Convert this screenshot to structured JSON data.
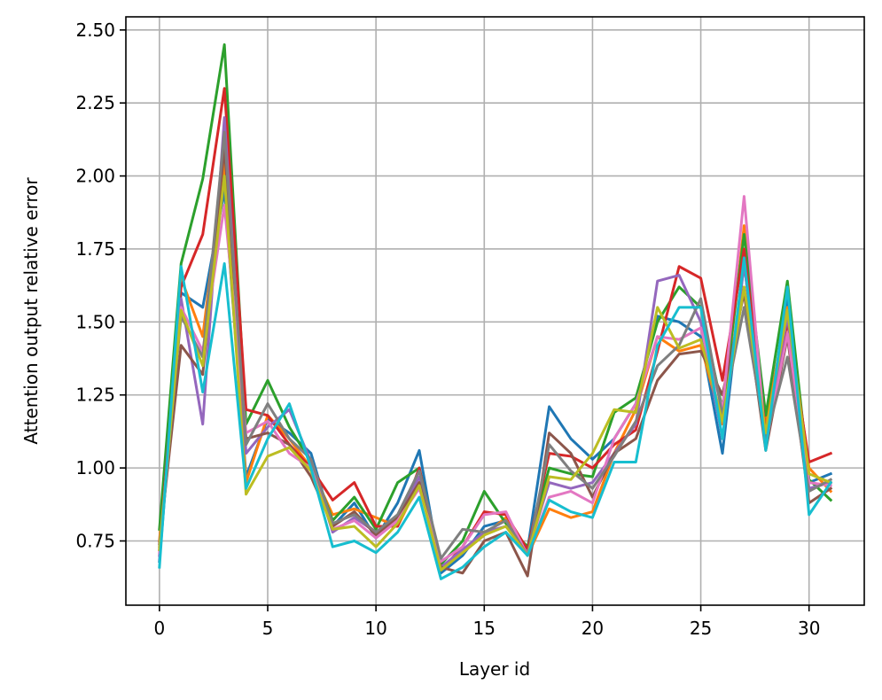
{
  "chart_data": {
    "type": "line",
    "title": "",
    "xlabel": "Layer id",
    "ylabel": "Attention output relative error",
    "xlim": [
      -1.55,
      32.55
    ],
    "ylim": [
      0.53,
      2.545
    ],
    "xticks": [
      0,
      5,
      10,
      15,
      20,
      25,
      30
    ],
    "xtick_labels": [
      "0",
      "5",
      "10",
      "15",
      "20",
      "25",
      "30"
    ],
    "yticks": [
      0.75,
      1.0,
      1.25,
      1.5,
      1.75,
      2.0,
      2.25,
      2.5
    ],
    "ytick_labels": [
      "0.75",
      "1.00",
      "1.25",
      "1.50",
      "1.75",
      "2.00",
      "2.25",
      "2.50"
    ],
    "grid": true,
    "legend": "none",
    "x": [
      0,
      1,
      2,
      3,
      4,
      5,
      6,
      7,
      8,
      9,
      10,
      11,
      12,
      13,
      14,
      15,
      16,
      17,
      18,
      19,
      20,
      21,
      22,
      23,
      24,
      25,
      26,
      27,
      28,
      29,
      30,
      31
    ],
    "series": [
      {
        "color": "#1f77b4",
        "values": [
          0.68,
          1.6,
          1.55,
          1.95,
          0.97,
          1.17,
          1.12,
          1.05,
          0.8,
          0.88,
          0.76,
          0.88,
          1.06,
          0.64,
          0.7,
          0.8,
          0.82,
          0.72,
          1.21,
          1.1,
          1.03,
          1.1,
          1.22,
          1.52,
          1.5,
          1.45,
          1.05,
          1.7,
          1.1,
          1.58,
          0.95,
          0.98
        ]
      },
      {
        "color": "#ff7f0e",
        "values": [
          0.75,
          1.65,
          1.45,
          2.05,
          0.95,
          1.18,
          1.1,
          1.0,
          0.84,
          0.86,
          0.83,
          0.8,
          0.95,
          0.66,
          0.71,
          0.77,
          0.83,
          0.7,
          0.86,
          0.83,
          0.85,
          1.05,
          1.2,
          1.45,
          1.4,
          1.42,
          1.15,
          1.83,
          1.15,
          1.55,
          1.0,
          0.92
        ]
      },
      {
        "color": "#2ca02c",
        "values": [
          0.79,
          1.7,
          1.99,
          2.45,
          1.15,
          1.3,
          1.14,
          1.02,
          0.82,
          0.9,
          0.79,
          0.95,
          1.0,
          0.67,
          0.75,
          0.92,
          0.81,
          0.73,
          1.0,
          0.98,
          0.97,
          1.19,
          1.24,
          1.5,
          1.62,
          1.55,
          1.2,
          1.8,
          1.18,
          1.64,
          0.96,
          0.89
        ]
      },
      {
        "color": "#d62728",
        "values": [
          0.72,
          1.62,
          1.8,
          2.3,
          1.2,
          1.18,
          1.08,
          1.0,
          0.89,
          0.95,
          0.8,
          0.8,
          1.0,
          0.65,
          0.73,
          0.85,
          0.84,
          0.72,
          1.05,
          1.04,
          1.0,
          1.08,
          1.13,
          1.4,
          1.69,
          1.65,
          1.3,
          1.75,
          1.12,
          1.5,
          1.02,
          1.05
        ]
      },
      {
        "color": "#9467bd",
        "values": [
          0.7,
          1.58,
          1.15,
          2.2,
          1.05,
          1.14,
          1.2,
          1.02,
          0.78,
          0.83,
          0.78,
          0.82,
          0.97,
          0.66,
          0.72,
          0.78,
          0.8,
          0.71,
          0.95,
          0.93,
          0.95,
          1.05,
          1.15,
          1.64,
          1.66,
          1.5,
          1.1,
          1.7,
          1.1,
          1.52,
          0.93,
          0.95
        ]
      },
      {
        "color": "#8c564b",
        "values": [
          0.74,
          1.42,
          1.32,
          2.1,
          1.1,
          1.12,
          1.08,
          0.97,
          0.8,
          0.85,
          0.77,
          0.83,
          0.95,
          0.66,
          0.64,
          0.75,
          0.78,
          0.63,
          1.12,
          1.05,
          0.9,
          1.05,
          1.1,
          1.3,
          1.39,
          1.4,
          1.25,
          1.6,
          1.06,
          1.45,
          0.88,
          0.93
        ]
      },
      {
        "color": "#e377c2",
        "values": [
          0.71,
          1.55,
          1.4,
          1.9,
          1.12,
          1.16,
          1.05,
          1.0,
          0.79,
          0.82,
          0.76,
          0.82,
          0.93,
          0.68,
          0.73,
          0.84,
          0.85,
          0.7,
          0.9,
          0.92,
          0.88,
          1.1,
          1.22,
          1.45,
          1.44,
          1.48,
          1.2,
          1.93,
          1.08,
          1.46,
          0.95,
          0.94
        ]
      },
      {
        "color": "#7f7f7f",
        "values": [
          0.73,
          1.52,
          1.38,
          2.15,
          1.08,
          1.22,
          1.1,
          1.03,
          0.81,
          0.84,
          0.78,
          0.84,
          0.99,
          0.69,
          0.79,
          0.78,
          0.82,
          0.7,
          1.08,
          0.99,
          0.93,
          1.04,
          1.16,
          1.35,
          1.42,
          1.58,
          1.18,
          1.55,
          1.1,
          1.38,
          0.92,
          0.96
        ]
      },
      {
        "color": "#bcbd22",
        "values": [
          0.72,
          1.54,
          1.35,
          2.0,
          0.91,
          1.04,
          1.07,
          0.99,
          0.79,
          0.8,
          0.73,
          0.81,
          0.94,
          0.65,
          0.71,
          0.77,
          0.8,
          0.7,
          0.97,
          0.96,
          1.05,
          1.2,
          1.19,
          1.55,
          1.41,
          1.44,
          1.16,
          1.62,
          1.12,
          1.54,
          0.98,
          0.95
        ]
      },
      {
        "color": "#17becf",
        "values": [
          0.66,
          1.69,
          1.26,
          1.7,
          0.93,
          1.1,
          1.22,
          1.0,
          0.73,
          0.75,
          0.71,
          0.78,
          0.9,
          0.62,
          0.66,
          0.73,
          0.78,
          0.7,
          0.89,
          0.85,
          0.83,
          1.02,
          1.02,
          1.42,
          1.55,
          1.55,
          1.1,
          1.72,
          1.06,
          1.62,
          0.84,
          0.95
        ]
      }
    ]
  }
}
